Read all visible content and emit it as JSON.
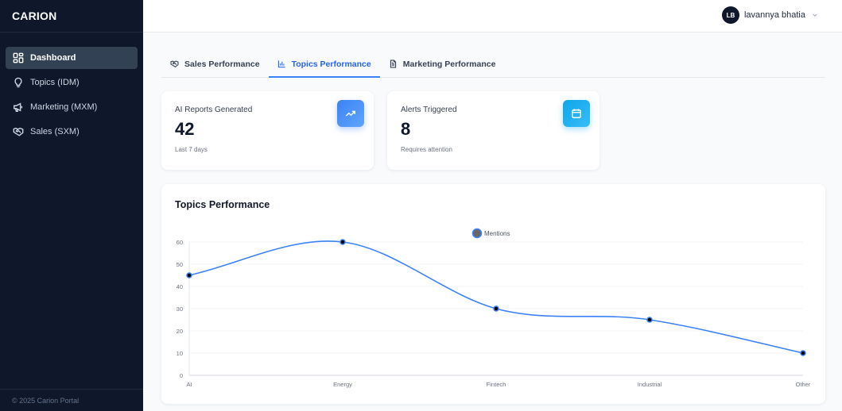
{
  "app": {
    "brand": "CARION",
    "footer": "© 2025 Carion Portal"
  },
  "sidebar": {
    "items": [
      {
        "label": "Dashboard",
        "icon": "dashboard-grid-icon",
        "active": true
      },
      {
        "label": "Topics (IDM)",
        "icon": "lightbulb-icon",
        "active": false
      },
      {
        "label": "Marketing (MXM)",
        "icon": "megaphone-icon",
        "active": false
      },
      {
        "label": "Sales (SXM)",
        "icon": "handshake-icon",
        "active": false
      }
    ]
  },
  "header": {
    "user": {
      "initials": "LB",
      "name": "lavannya bhatia",
      "menu_icon": "chevron-down-icon"
    }
  },
  "tabs": [
    {
      "label": "Sales Performance",
      "icon": "handshake-icon",
      "active": false
    },
    {
      "label": "Topics Performance",
      "icon": "bar-chart-icon",
      "active": true
    },
    {
      "label": "Marketing Performance",
      "icon": "document-icon",
      "active": false
    }
  ],
  "stats": [
    {
      "label": "AI Reports Generated",
      "value": "42",
      "sub": "Last 7 days",
      "icon": "trending-up-icon",
      "color_from": "#3b82f6",
      "color_to": "#60a5fa"
    },
    {
      "label": "Alerts Triggered",
      "value": "8",
      "sub": "Requires attention",
      "icon": "calendar-icon",
      "color_from": "#0ea5e9",
      "color_to": "#38bdf8"
    }
  ],
  "chart": {
    "title": "Topics Performance"
  },
  "chart_data": {
    "type": "line",
    "title": "Topics Performance",
    "categories": [
      "AI",
      "Energy",
      "Fintech",
      "Industrial",
      "Other"
    ],
    "series": [
      {
        "name": "Mentions",
        "values": [
          45,
          60,
          30,
          25,
          10
        ],
        "color": "#3b82f6"
      }
    ],
    "yticks": [
      0,
      10,
      20,
      30,
      40,
      50,
      60
    ],
    "ylim": [
      0,
      60
    ],
    "xlabel": "",
    "ylabel": "",
    "grid": true,
    "legend_position": "top-center",
    "smooth": true
  }
}
